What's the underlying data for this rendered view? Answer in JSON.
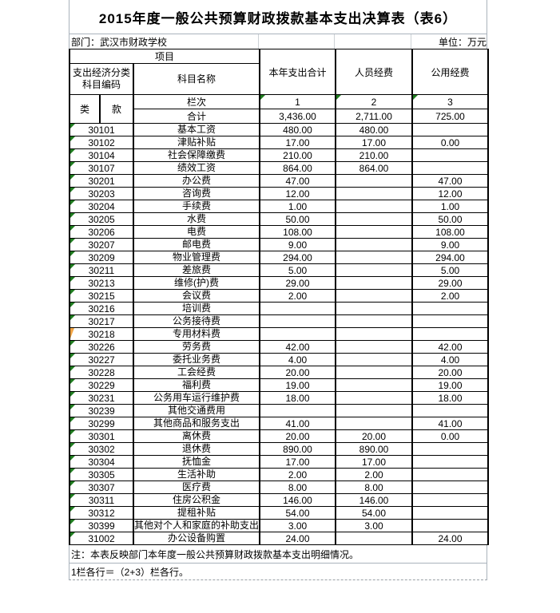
{
  "title": "2015年度一般公共预算财政拨款基本支出决算表（表6）",
  "meta": {
    "department_label": "部门：武汉市财政学校",
    "unit_label": "单位：万元"
  },
  "header": {
    "project": "项目",
    "code_label": "支出经济分类科目编码",
    "subject_name": "科目名称",
    "col_total": "本年支出合计",
    "col_personnel": "人员经费",
    "col_public": "公用经费",
    "class_label": "类",
    "item_label": "款",
    "rank_label": "栏次",
    "col_numbers": [
      "1",
      "2",
      "3"
    ],
    "total_row": {
      "label": "合计",
      "total": "3,436.00",
      "personnel": "2,711.00",
      "public": "725.00"
    }
  },
  "rows": [
    {
      "code": "30101",
      "name": "基本工资",
      "total": "480.00",
      "personnel": "480.00",
      "public": "",
      "marker": "green"
    },
    {
      "code": "30102",
      "name": "津贴补贴",
      "total": "17.00",
      "personnel": "17.00",
      "public": "0.00",
      "marker": "green"
    },
    {
      "code": "30104",
      "name": "社会保障缴费",
      "total": "210.00",
      "personnel": "210.00",
      "public": "",
      "marker": "green"
    },
    {
      "code": "30107",
      "name": "绩效工资",
      "total": "864.00",
      "personnel": "864.00",
      "public": "",
      "marker": "green"
    },
    {
      "code": "30201",
      "name": "办公费",
      "total": "47.00",
      "personnel": "",
      "public": "47.00",
      "marker": "green"
    },
    {
      "code": "30203",
      "name": "咨询费",
      "total": "12.00",
      "personnel": "",
      "public": "12.00",
      "marker": "green"
    },
    {
      "code": "30204",
      "name": "手续费",
      "total": "1.00",
      "personnel": "",
      "public": "1.00",
      "marker": "green"
    },
    {
      "code": "30205",
      "name": "水费",
      "total": "50.00",
      "personnel": "",
      "public": "50.00",
      "marker": "green"
    },
    {
      "code": "30206",
      "name": "电费",
      "total": "108.00",
      "personnel": "",
      "public": "108.00",
      "marker": "green"
    },
    {
      "code": "30207",
      "name": "邮电费",
      "total": "9.00",
      "personnel": "",
      "public": "9.00",
      "marker": "green"
    },
    {
      "code": "30209",
      "name": "物业管理费",
      "total": "294.00",
      "personnel": "",
      "public": "294.00",
      "marker": "green"
    },
    {
      "code": "30211",
      "name": "差旅费",
      "total": "5.00",
      "personnel": "",
      "public": "5.00",
      "marker": "green"
    },
    {
      "code": "30213",
      "name": "维修(护)费",
      "total": "29.00",
      "personnel": "",
      "public": "29.00",
      "marker": "green"
    },
    {
      "code": "30215",
      "name": "会议费",
      "total": "2.00",
      "personnel": "",
      "public": "2.00",
      "marker": "green"
    },
    {
      "code": "30216",
      "name": "培训费",
      "total": "",
      "personnel": "",
      "public": "",
      "marker": "green"
    },
    {
      "code": "30217",
      "name": "公务接待费",
      "total": "",
      "personnel": "",
      "public": "",
      "marker": "green"
    },
    {
      "code": "30218",
      "name": "专用材料费",
      "total": "",
      "personnel": "",
      "public": "",
      "marker": "orange"
    },
    {
      "code": "30226",
      "name": "劳务费",
      "total": "42.00",
      "personnel": "",
      "public": "42.00",
      "marker": "green"
    },
    {
      "code": "30227",
      "name": "委托业务费",
      "total": "4.00",
      "personnel": "",
      "public": "4.00",
      "marker": "green"
    },
    {
      "code": "30228",
      "name": "工会经费",
      "total": "20.00",
      "personnel": "",
      "public": "20.00",
      "marker": "green"
    },
    {
      "code": "30229",
      "name": "福利费",
      "total": "19.00",
      "personnel": "",
      "public": "19.00",
      "marker": "green"
    },
    {
      "code": "30231",
      "name": "公务用车运行维护费",
      "total": "18.00",
      "personnel": "",
      "public": "18.00",
      "marker": "green"
    },
    {
      "code": "30239",
      "name": "其他交通费用",
      "total": "",
      "personnel": "",
      "public": "",
      "marker": "green"
    },
    {
      "code": "30299",
      "name": "其他商品和服务支出",
      "total": "41.00",
      "personnel": "",
      "public": "41.00",
      "marker": "green"
    },
    {
      "code": "30301",
      "name": "离休费",
      "total": "20.00",
      "personnel": "20.00",
      "public": "0.00",
      "marker": "green"
    },
    {
      "code": "30302",
      "name": "退休费",
      "total": "890.00",
      "personnel": "890.00",
      "public": "",
      "marker": "green"
    },
    {
      "code": "30304",
      "name": "抚恤金",
      "total": "17.00",
      "personnel": "17.00",
      "public": "",
      "marker": "green"
    },
    {
      "code": "30305",
      "name": "生活补助",
      "total": "2.00",
      "personnel": "2.00",
      "public": "",
      "marker": "green"
    },
    {
      "code": "30307",
      "name": "医疗费",
      "total": "8.00",
      "personnel": "8.00",
      "public": "",
      "marker": "green"
    },
    {
      "code": "30311",
      "name": "住房公积金",
      "total": "146.00",
      "personnel": "146.00",
      "public": "",
      "marker": "green"
    },
    {
      "code": "30312",
      "name": "提租补贴",
      "total": "54.00",
      "personnel": "54.00",
      "public": "",
      "marker": "green"
    },
    {
      "code": "30399",
      "name": "其他对个人和家庭的补助支出",
      "total": "3.00",
      "personnel": "3.00",
      "public": "",
      "marker": "green"
    },
    {
      "code": "31002",
      "name": "办公设备购置",
      "total": "24.00",
      "personnel": "",
      "public": "24.00",
      "marker": "green"
    }
  ],
  "notes": {
    "note1": "注：本表反映部门本年度一般公共预算财政拨款基本支出明细情况。",
    "note2": "1栏各行＝（2+3）栏各行。"
  },
  "colors": {
    "marker_green": "#1f7d1f",
    "marker_orange": "#f0a343",
    "border_dark": "#000000",
    "border_light": "#aab3bc"
  }
}
